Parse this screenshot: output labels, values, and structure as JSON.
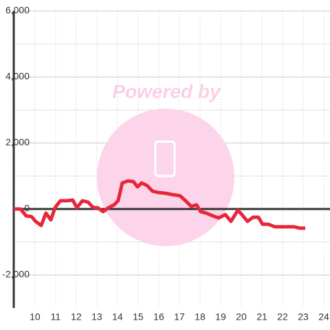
{
  "chart_data": {
    "type": "line",
    "watermark": "Powered by",
    "x": [
      8.97,
      9.3,
      9.57,
      9.83,
      10.03,
      10.3,
      10.53,
      10.77,
      10.97,
      11.23,
      11.53,
      11.83,
      12.03,
      12.3,
      12.57,
      12.83,
      13.03,
      13.3,
      13.57,
      13.83,
      14.03,
      14.23,
      14.5,
      14.77,
      14.97,
      15.17,
      15.43,
      15.7,
      15.97,
      16.3,
      16.63,
      17.03,
      17.3,
      17.57,
      17.83,
      18.03,
      18.3,
      18.63,
      18.9,
      19.23,
      19.5,
      19.83,
      20.03,
      20.3,
      20.57,
      20.83,
      21.03,
      21.3,
      21.63,
      22.03,
      22.57,
      22.83,
      23.1
    ],
    "series": [
      {
        "color": "#e8263a",
        "values": [
          0,
          0,
          -210,
          -230,
          -375,
          -500,
          -125,
          -330,
          40,
          250,
          250,
          270,
          40,
          250,
          210,
          40,
          40,
          -80,
          40,
          125,
          250,
          790,
          850,
          830,
          670,
          790,
          710,
          540,
          500,
          480,
          440,
          400,
          250,
          80,
          125,
          -80,
          -125,
          -210,
          -270,
          -170,
          -375,
          -40,
          -170,
          -375,
          -250,
          -250,
          -460,
          -460,
          -540,
          -540,
          -540,
          -580,
          -580
        ]
      }
    ],
    "xlim": [
      8.97,
      24.3
    ],
    "xticks": [
      10,
      11,
      12,
      13,
      14,
      15,
      16,
      17,
      18,
      19,
      20,
      21,
      22,
      23,
      24
    ],
    "ylim": [
      -3000,
      6000
    ],
    "yticks": [
      {
        "value": -2000,
        "label": "-2,000"
      },
      0,
      {
        "value": 2000,
        "label": "2,000"
      },
      {
        "value": 4000,
        "label": "4,000"
      },
      {
        "value": 6000,
        "label": "6,000"
      }
    ],
    "minor_yticks": [
      -1000,
      1000,
      3000,
      5000
    ],
    "grid": true
  }
}
